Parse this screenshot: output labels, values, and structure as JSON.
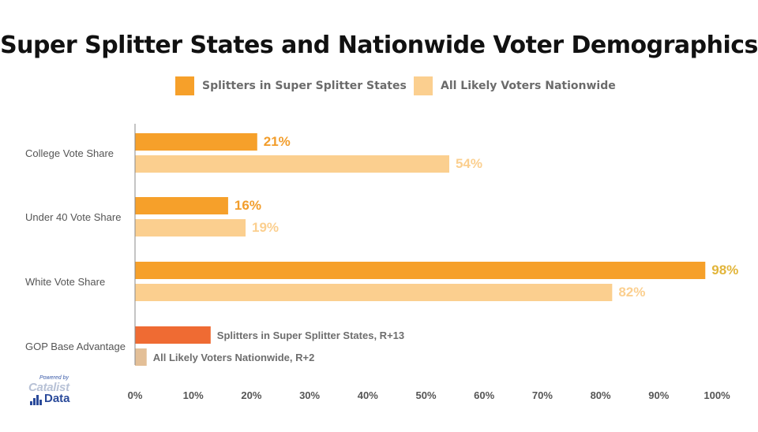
{
  "chart_data": {
    "type": "bar",
    "orientation": "horizontal",
    "title": "Super Splitter States and Nationwide Voter Demographics",
    "categories": [
      "College Vote Share",
      "Under 40 Vote Share",
      "White Vote Share",
      "GOP Base Advantage"
    ],
    "series": [
      {
        "name": "Splitters in Super Splitter States",
        "color": "#f6a02a",
        "values": [
          21,
          16,
          98,
          13
        ],
        "labels": [
          "21%",
          "16%",
          "98%",
          "Splitters in Super Splitter States, R+13"
        ]
      },
      {
        "name": "All Likely Voters Nationwide",
        "color": "#fbcf8f",
        "values": [
          54,
          19,
          82,
          2
        ],
        "labels": [
          "54%",
          "19%",
          "82%",
          "All Likely Voters Nationwide, R+2"
        ]
      }
    ],
    "gop_colors": [
      "#ef6b33",
      "#e3bf97"
    ],
    "label_colors": [
      "#f29d2b",
      "#fbcf8f"
    ],
    "white_label_color": "#e2b53a",
    "xlim": [
      0,
      100
    ],
    "xticks": [
      0,
      10,
      20,
      30,
      40,
      50,
      60,
      70,
      80,
      90,
      100
    ],
    "xtick_labels": [
      "0%",
      "10%",
      "20%",
      "30%",
      "40%",
      "50%",
      "60%",
      "70%",
      "80%",
      "90%",
      "100%"
    ],
    "legend": "top",
    "grid": false
  },
  "logo": {
    "powered_by": "Powered by",
    "brand": "Catalist",
    "sub": "Data"
  }
}
